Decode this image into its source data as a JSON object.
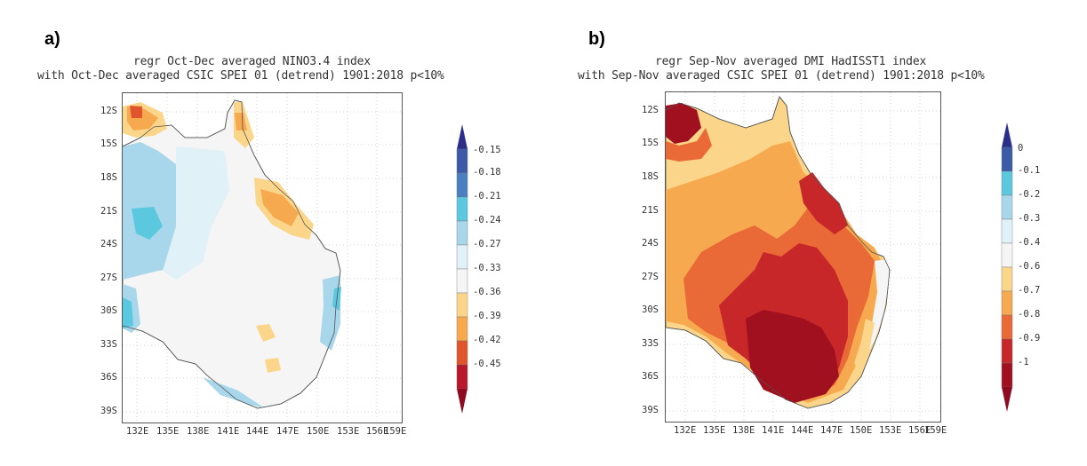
{
  "panels": [
    {
      "id": "a",
      "label": "a)",
      "title_line1": "regr Oct-Dec averaged NINO3.4 index",
      "title_line2": "with Oct-Dec averaged CSIC SPEI 01 (detrend) 1901:2018 p<10%",
      "lat_ticks": [
        "12S",
        "15S",
        "18S",
        "21S",
        "24S",
        "27S",
        "30S",
        "33S",
        "36S",
        "39S"
      ],
      "lon_ticks": [
        "132E",
        "135E",
        "138E",
        "141E",
        "144E",
        "147E",
        "150E",
        "153E",
        "156E",
        "159E"
      ],
      "colorbar_labels": [
        "-0.15",
        "-0.18",
        "-0.21",
        "-0.24",
        "-0.27",
        "-0.33",
        "-0.36",
        "-0.39",
        "-0.42",
        "-0.45"
      ],
      "colorbar_colors": [
        "#3b5ba8",
        "#4a7fc0",
        "#5bc8e0",
        "#a8d6ea",
        "#e0f1f8",
        "#f5f5f5",
        "#fbd68a",
        "#f6a94e",
        "#e0552c",
        "#b8182a"
      ],
      "arrow_top_color": "#2b2f8a",
      "arrow_bottom_color": "#8e0a20"
    },
    {
      "id": "b",
      "label": "b)",
      "title_line1": "regr Sep-Nov averaged DMI HadISST1 index",
      "title_line2": "with Sep-Nov averaged CSIC SPEI 01 (detrend) 1901:2018 p<10%",
      "lat_ticks": [
        "12S",
        "15S",
        "18S",
        "21S",
        "24S",
        "27S",
        "30S",
        "33S",
        "36S",
        "39S"
      ],
      "lon_ticks": [
        "132E",
        "135E",
        "138E",
        "141E",
        "144E",
        "147E",
        "150E",
        "153E",
        "156E",
        "159E"
      ],
      "colorbar_labels": [
        "0",
        "-0.1",
        "-0.2",
        "-0.3",
        "-0.4",
        "-0.6",
        "-0.7",
        "-0.8",
        "-0.9",
        "-1"
      ],
      "colorbar_colors": [
        "#3b5ba8",
        "#5bc8e0",
        "#a8d6ea",
        "#e0f1f8",
        "#f5f5f5",
        "#fbd68a",
        "#f6a94e",
        "#e96a36",
        "#c8272a",
        "#a0101f"
      ],
      "arrow_top_color": "#2b2f8a",
      "arrow_bottom_color": "#8e0a20"
    }
  ]
}
